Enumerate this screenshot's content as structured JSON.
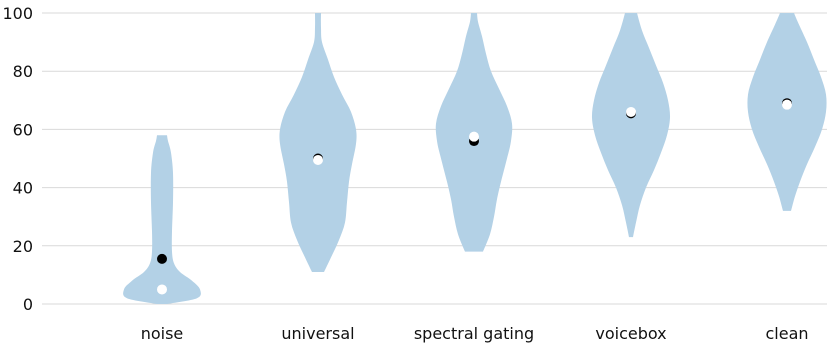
{
  "chart_data": {
    "type": "violin",
    "title": "",
    "xlabel": "",
    "ylabel": "",
    "ylim": [
      0,
      100
    ],
    "yticks": [
      0,
      20,
      40,
      60,
      80,
      100
    ],
    "grid": "horizontal",
    "colors": {
      "violin": "#b3d1e6",
      "mean_marker": "#000000",
      "median_marker": "#ffffff",
      "grid": "#d9d9d9"
    },
    "categories": [
      "noise",
      "universal",
      "spectral gating",
      "voicebox",
      "clean"
    ],
    "violins": [
      {
        "category": "noise",
        "mean": 15.5,
        "median": 5,
        "min": 0,
        "max": 58,
        "profile": [
          [
            0,
            5
          ],
          [
            2,
            35
          ],
          [
            5,
            38
          ],
          [
            8,
            30
          ],
          [
            11,
            18
          ],
          [
            14,
            12
          ],
          [
            18,
            10
          ],
          [
            25,
            10
          ],
          [
            35,
            11
          ],
          [
            45,
            11
          ],
          [
            52,
            9
          ],
          [
            56,
            6
          ],
          [
            58,
            5
          ]
        ]
      },
      {
        "category": "universal",
        "mean": 50,
        "median": 49.5,
        "min": 11,
        "max": 100,
        "profile": [
          [
            11,
            6
          ],
          [
            16,
            13
          ],
          [
            22,
            21
          ],
          [
            28,
            27
          ],
          [
            35,
            29
          ],
          [
            42,
            31
          ],
          [
            48,
            34
          ],
          [
            55,
            38
          ],
          [
            60,
            38
          ],
          [
            66,
            33
          ],
          [
            72,
            24
          ],
          [
            78,
            16
          ],
          [
            84,
            10
          ],
          [
            90,
            4
          ],
          [
            95,
            3
          ],
          [
            100,
            3
          ]
        ]
      },
      {
        "category": "spectral gating",
        "mean": 56,
        "median": 57.5,
        "min": 18,
        "max": 100,
        "profile": [
          [
            18,
            9
          ],
          [
            24,
            16
          ],
          [
            30,
            20
          ],
          [
            36,
            23
          ],
          [
            42,
            27
          ],
          [
            50,
            33
          ],
          [
            56,
            37
          ],
          [
            62,
            38
          ],
          [
            68,
            33
          ],
          [
            74,
            25
          ],
          [
            80,
            17
          ],
          [
            86,
            12
          ],
          [
            92,
            8
          ],
          [
            97,
            4
          ],
          [
            100,
            3
          ]
        ]
      },
      {
        "category": "voicebox",
        "mean": 65.5,
        "median": 66,
        "min": 23,
        "max": 100,
        "profile": [
          [
            23,
            2
          ],
          [
            28,
            5
          ],
          [
            34,
            9
          ],
          [
            40,
            15
          ],
          [
            46,
            23
          ],
          [
            52,
            30
          ],
          [
            58,
            36
          ],
          [
            64,
            39
          ],
          [
            70,
            37
          ],
          [
            76,
            32
          ],
          [
            82,
            25
          ],
          [
            88,
            18
          ],
          [
            94,
            11
          ],
          [
            100,
            6
          ]
        ]
      },
      {
        "category": "clean",
        "mean": 69,
        "median": 68.5,
        "min": 32,
        "max": 100,
        "profile": [
          [
            32,
            4
          ],
          [
            37,
            8
          ],
          [
            42,
            13
          ],
          [
            48,
            20
          ],
          [
            54,
            28
          ],
          [
            60,
            35
          ],
          [
            66,
            39
          ],
          [
            72,
            39
          ],
          [
            78,
            34
          ],
          [
            84,
            27
          ],
          [
            90,
            20
          ],
          [
            96,
            12
          ],
          [
            100,
            7
          ]
        ]
      }
    ]
  }
}
